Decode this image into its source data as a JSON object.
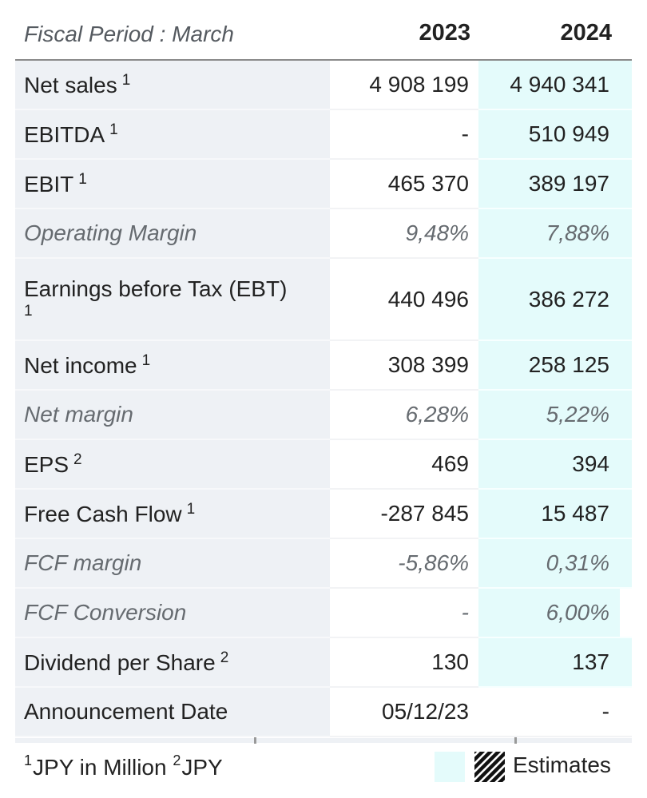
{
  "header": {
    "period": "Fiscal Period : March",
    "years": [
      "2023",
      "2024"
    ]
  },
  "rows": [
    {
      "label": "Net sales",
      "note": "1",
      "v2023": "4 908 199",
      "v2024": "4 940 341"
    },
    {
      "label": "EBITDA",
      "note": "1",
      "v2023": "-",
      "v2024": "510 949"
    },
    {
      "label": "EBIT",
      "note": "1",
      "v2023": "465 370",
      "v2024": "389 197"
    },
    {
      "label": "Operating Margin",
      "v2023": "9,48%",
      "v2024": "7,88%"
    },
    {
      "label": "Earnings before Tax (EBT)",
      "note": "1",
      "v2023": "440 496",
      "v2024": "386 272"
    },
    {
      "label": "Net income",
      "note": "1",
      "v2023": "308 399",
      "v2024": "258 125"
    },
    {
      "label": "Net margin",
      "v2023": "6,28%",
      "v2024": "5,22%"
    },
    {
      "label": "EPS",
      "note": "2",
      "v2023": "469",
      "v2024": "394"
    },
    {
      "label": "Free Cash Flow",
      "note": "1",
      "v2023": "-287 845",
      "v2024": "15 487"
    },
    {
      "label": "FCF margin",
      "v2023": "-5,86%",
      "v2024": "0,31%"
    },
    {
      "label": "FCF Conversion",
      "v2023": "-",
      "v2024": "6,00%"
    },
    {
      "label": "Dividend per Share",
      "note": "2",
      "v2023": "130",
      "v2024": "137"
    },
    {
      "label": "Announcement Date",
      "v2023": "05/12/23",
      "v2024": "-"
    }
  ],
  "footer": {
    "note1_num": "1",
    "note1_text": "JPY in Million ",
    "note2_num": "2",
    "note2_text": "JPY",
    "legend_label": "Estimates"
  },
  "colors": {
    "label_bg": "#eef1f5",
    "estimate_bg": "#e4fbfb",
    "italic_text": "#666b70"
  }
}
